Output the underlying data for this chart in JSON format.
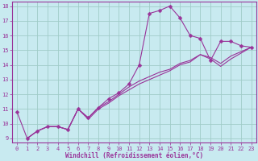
{
  "title": "",
  "xlabel": "Windchill (Refroidissement éolien,°C)",
  "ylabel": "",
  "background_color": "#c8eaf0",
  "grid_color": "#a0ccc8",
  "line_color": "#993399",
  "spine_color": "#993399",
  "xlim": [
    -0.5,
    23.5
  ],
  "ylim": [
    8.7,
    18.3
  ],
  "xticks": [
    0,
    1,
    2,
    3,
    4,
    5,
    6,
    7,
    8,
    9,
    10,
    11,
    12,
    13,
    14,
    15,
    16,
    17,
    18,
    19,
    20,
    21,
    22,
    23
  ],
  "yticks": [
    9,
    10,
    11,
    12,
    13,
    14,
    15,
    16,
    17,
    18
  ],
  "line1_x": [
    0,
    1,
    2,
    3,
    4,
    5,
    6,
    7,
    8,
    9,
    10,
    11,
    12,
    13,
    14,
    15,
    16,
    17,
    18,
    19,
    20,
    21,
    22,
    23
  ],
  "line1_y": [
    10.8,
    9.0,
    9.5,
    9.8,
    9.8,
    9.6,
    11.0,
    10.4,
    11.1,
    11.7,
    12.1,
    12.7,
    14.0,
    17.5,
    17.7,
    18.0,
    17.2,
    16.0,
    15.8,
    14.3,
    15.6,
    15.6,
    15.3,
    15.2
  ],
  "line2_x": [
    1,
    2,
    3,
    4,
    5,
    6,
    7,
    8,
    9,
    10,
    11,
    12,
    13,
    14,
    15,
    16,
    17,
    18,
    19,
    20,
    21,
    22,
    23
  ],
  "line2_y": [
    9.0,
    9.5,
    9.8,
    9.8,
    9.6,
    11.0,
    10.4,
    11.1,
    11.5,
    12.0,
    12.5,
    12.9,
    13.2,
    13.5,
    13.7,
    14.1,
    14.3,
    14.7,
    14.5,
    14.1,
    14.6,
    14.9,
    15.2
  ],
  "line3_x": [
    1,
    2,
    3,
    4,
    5,
    6,
    7,
    8,
    9,
    10,
    11,
    12,
    13,
    14,
    15,
    16,
    17,
    18,
    19,
    20,
    21,
    22,
    23
  ],
  "line3_y": [
    9.0,
    9.5,
    9.8,
    9.8,
    9.6,
    11.0,
    10.3,
    11.0,
    11.4,
    11.9,
    12.3,
    12.7,
    13.0,
    13.3,
    13.6,
    14.0,
    14.2,
    14.7,
    14.4,
    13.9,
    14.4,
    14.8,
    15.2
  ],
  "tick_fontsize": 5.0,
  "xlabel_fontsize": 5.5
}
